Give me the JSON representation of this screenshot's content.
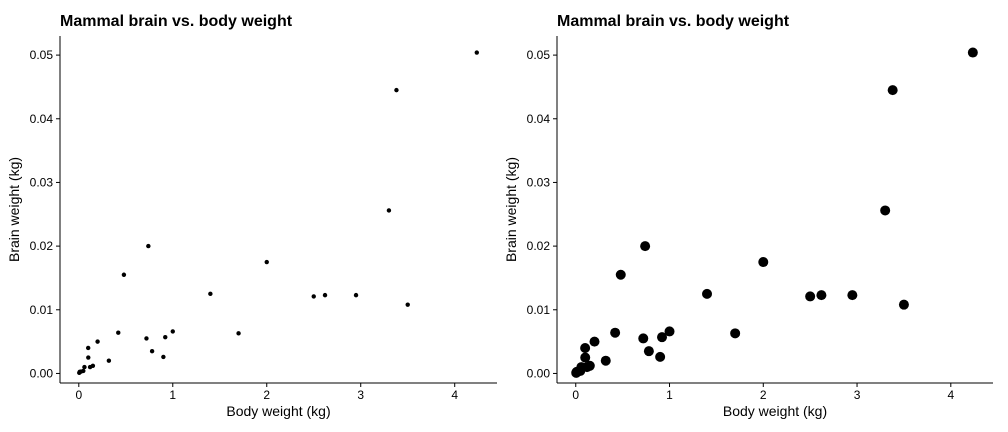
{
  "chart_data": [
    {
      "type": "scatter",
      "title": "Mammal brain vs. body weight",
      "xlabel": "Body weight (kg)",
      "ylabel": "Brain weight (kg)",
      "xlim": [
        -0.2,
        4.45
      ],
      "ylim": [
        -0.0015,
        0.053
      ],
      "xticks": [
        0,
        1,
        2,
        3,
        4
      ],
      "xtick_labels": [
        "0",
        "1",
        "2",
        "3",
        "4"
      ],
      "yticks": [
        0,
        0.01,
        0.02,
        0.03,
        0.04,
        0.05
      ],
      "ytick_labels": [
        "0.00",
        "0.01",
        "0.02",
        "0.03",
        "0.04",
        "0.05"
      ],
      "grid": false,
      "point_size": "small",
      "color": "#000000",
      "points": [
        {
          "x": 0.005,
          "y": 0.0001
        },
        {
          "x": 0.01,
          "y": 0.00025
        },
        {
          "x": 0.023,
          "y": 0.0003
        },
        {
          "x": 0.048,
          "y": 0.0004
        },
        {
          "x": 0.06,
          "y": 0.001
        },
        {
          "x": 0.1,
          "y": 0.004
        },
        {
          "x": 0.101,
          "y": 0.0025
        },
        {
          "x": 0.12,
          "y": 0.001
        },
        {
          "x": 0.15,
          "y": 0.0012
        },
        {
          "x": 0.2,
          "y": 0.005
        },
        {
          "x": 0.32,
          "y": 0.002
        },
        {
          "x": 0.42,
          "y": 0.0064
        },
        {
          "x": 0.48,
          "y": 0.0155
        },
        {
          "x": 0.72,
          "y": 0.0055
        },
        {
          "x": 0.74,
          "y": 0.02
        },
        {
          "x": 0.78,
          "y": 0.0035
        },
        {
          "x": 0.9,
          "y": 0.0026
        },
        {
          "x": 0.92,
          "y": 0.0057
        },
        {
          "x": 1.0,
          "y": 0.0066
        },
        {
          "x": 1.4,
          "y": 0.0125
        },
        {
          "x": 1.7,
          "y": 0.0063
        },
        {
          "x": 2.0,
          "y": 0.0175
        },
        {
          "x": 2.5,
          "y": 0.0121
        },
        {
          "x": 2.62,
          "y": 0.0123
        },
        {
          "x": 2.95,
          "y": 0.0123
        },
        {
          "x": 3.3,
          "y": 0.0256
        },
        {
          "x": 3.38,
          "y": 0.0445
        },
        {
          "x": 3.5,
          "y": 0.0108
        },
        {
          "x": 4.235,
          "y": 0.0504
        }
      ]
    },
    {
      "type": "scatter",
      "title": "Mammal brain vs. body weight",
      "xlabel": "Body weight (kg)",
      "ylabel": "Brain weight (kg)",
      "xlim": [
        -0.2,
        4.45
      ],
      "ylim": [
        -0.0015,
        0.053
      ],
      "xticks": [
        0,
        1,
        2,
        3,
        4
      ],
      "xtick_labels": [
        "0",
        "1",
        "2",
        "3",
        "4"
      ],
      "yticks": [
        0,
        0.01,
        0.02,
        0.03,
        0.04,
        0.05
      ],
      "ytick_labels": [
        "0.00",
        "0.01",
        "0.02",
        "0.03",
        "0.04",
        "0.05"
      ],
      "grid": false,
      "point_size": "large",
      "color": "#000000",
      "points": [
        {
          "x": 0.005,
          "y": 0.0001
        },
        {
          "x": 0.01,
          "y": 0.00025
        },
        {
          "x": 0.023,
          "y": 0.0003
        },
        {
          "x": 0.048,
          "y": 0.0004
        },
        {
          "x": 0.06,
          "y": 0.001
        },
        {
          "x": 0.1,
          "y": 0.004
        },
        {
          "x": 0.101,
          "y": 0.0025
        },
        {
          "x": 0.12,
          "y": 0.001
        },
        {
          "x": 0.15,
          "y": 0.0012
        },
        {
          "x": 0.2,
          "y": 0.005
        },
        {
          "x": 0.32,
          "y": 0.002
        },
        {
          "x": 0.42,
          "y": 0.0064
        },
        {
          "x": 0.48,
          "y": 0.0155
        },
        {
          "x": 0.72,
          "y": 0.0055
        },
        {
          "x": 0.74,
          "y": 0.02
        },
        {
          "x": 0.78,
          "y": 0.0035
        },
        {
          "x": 0.9,
          "y": 0.0026
        },
        {
          "x": 0.92,
          "y": 0.0057
        },
        {
          "x": 1.0,
          "y": 0.0066
        },
        {
          "x": 1.4,
          "y": 0.0125
        },
        {
          "x": 1.7,
          "y": 0.0063
        },
        {
          "x": 2.0,
          "y": 0.0175
        },
        {
          "x": 2.5,
          "y": 0.0121
        },
        {
          "x": 2.62,
          "y": 0.0123
        },
        {
          "x": 2.95,
          "y": 0.0123
        },
        {
          "x": 3.3,
          "y": 0.0256
        },
        {
          "x": 3.38,
          "y": 0.0445
        },
        {
          "x": 3.5,
          "y": 0.0108
        },
        {
          "x": 4.235,
          "y": 0.0504
        }
      ]
    }
  ]
}
